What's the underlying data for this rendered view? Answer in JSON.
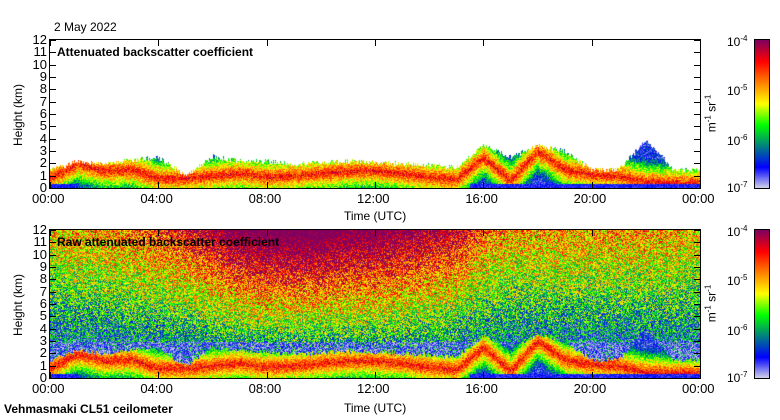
{
  "header": {
    "date": "2 May 2022"
  },
  "footer": {
    "instrument": "Vehmasmaki CL51 ceilometer"
  },
  "colorbar": {
    "label_base": "m",
    "label_exp1": "-1",
    "label_mid": " sr",
    "label_exp2": "-1",
    "ticks": [
      {
        "base": "10",
        "exp": "-4"
      },
      {
        "base": "10",
        "exp": "-5"
      },
      {
        "base": "10",
        "exp": "-6"
      },
      {
        "base": "10",
        "exp": "-7"
      }
    ],
    "colors": [
      "#800060",
      "#ff0000",
      "#ff8000",
      "#ffff00",
      "#00ff00",
      "#008080",
      "#0000ff",
      "#d8d8e8"
    ]
  },
  "chart_data": [
    {
      "type": "heatmap",
      "title": "Attenuated backscatter coefficient",
      "xlabel": "Time (UTC)",
      "ylabel": "Height (km)",
      "xticks": [
        "00:00",
        "04:00",
        "08:00",
        "12:00",
        "16:00",
        "20:00",
        "00:00"
      ],
      "yticks": [
        "0",
        "1",
        "2",
        "3",
        "4",
        "5",
        "6",
        "7",
        "8",
        "9",
        "10",
        "11",
        "12"
      ],
      "xlim_hours": [
        0,
        24
      ],
      "ylim_km": [
        0,
        12
      ],
      "color_scale": "log",
      "clim": [
        1e-07,
        0.0001
      ],
      "hours": [
        0,
        1,
        2,
        3,
        4,
        5,
        6,
        7,
        8,
        9,
        10,
        11,
        12,
        13,
        14,
        15,
        16,
        17,
        18,
        19,
        20,
        21,
        22,
        23,
        24
      ],
      "signal_top_km": [
        1.5,
        2.2,
        2.0,
        2.3,
        2.5,
        1.0,
        2.6,
        2.2,
        2.2,
        2.0,
        2.1,
        2.2,
        2.1,
        2.0,
        1.9,
        1.7,
        3.5,
        2.5,
        3.5,
        3.0,
        1.5,
        1.5,
        4.0,
        1.5,
        1.5
      ],
      "peak_layer_km": [
        0.8,
        2.0,
        1.4,
        1.5,
        0.8,
        0.8,
        1.0,
        1.2,
        0.9,
        1.0,
        1.2,
        1.4,
        1.4,
        1.2,
        0.9,
        0.7,
        2.5,
        0.6,
        3.0,
        1.5,
        1.1,
        1.0,
        0.5,
        0.4,
        0.4
      ]
    },
    {
      "type": "heatmap",
      "title": "Raw attenuated backscatter coefficient",
      "xlabel": "Time (UTC)",
      "ylabel": "Height (km)",
      "xticks": [
        "00:00",
        "04:00",
        "08:00",
        "12:00",
        "16:00",
        "20:00",
        "00:00"
      ],
      "yticks": [
        "0",
        "1",
        "2",
        "3",
        "4",
        "5",
        "6",
        "7",
        "8",
        "9",
        "10",
        "11",
        "12"
      ],
      "xlim_hours": [
        0,
        24
      ],
      "ylim_km": [
        0,
        12
      ],
      "color_scale": "log",
      "clim": [
        1e-07,
        0.0001
      ],
      "noise_level_by_hour": [
        0.45,
        0.5,
        0.5,
        0.55,
        0.6,
        0.65,
        0.75,
        0.85,
        0.9,
        0.9,
        0.9,
        0.85,
        0.85,
        0.8,
        0.75,
        0.7,
        0.55,
        0.5,
        0.5,
        0.5,
        0.5,
        0.5,
        0.5,
        0.5,
        0.45
      ]
    }
  ]
}
